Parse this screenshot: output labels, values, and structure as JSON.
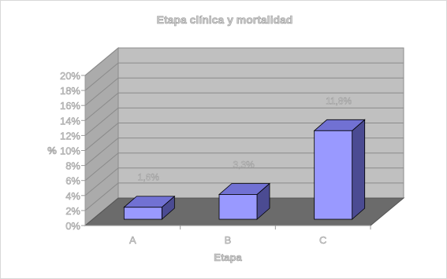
{
  "chart_data": {
    "type": "bar",
    "title": "Etapa clínica y mortalidad",
    "xlabel": "Etapa",
    "ylabel": "%",
    "categories": [
      "A",
      "B",
      "C"
    ],
    "values": [
      1.6,
      3.3,
      11.8
    ],
    "data_labels": [
      "1,6%",
      "3,3%",
      "11,8%"
    ],
    "y_ticks": [
      "0%",
      "2%",
      "4%",
      "6%",
      "8%",
      "10%",
      "12%",
      "14%",
      "16%",
      "18%",
      "20%"
    ],
    "ylim": [
      0,
      20
    ],
    "grid": true,
    "style": "3d-bar",
    "colors": {
      "bar_front": "#9999ff",
      "bar_top": "#7171d3",
      "bar_side": "#4b4b92",
      "back_wall": "#c0c0c0",
      "side_wall": "#ababab",
      "floor": "#6b6b6b"
    }
  }
}
